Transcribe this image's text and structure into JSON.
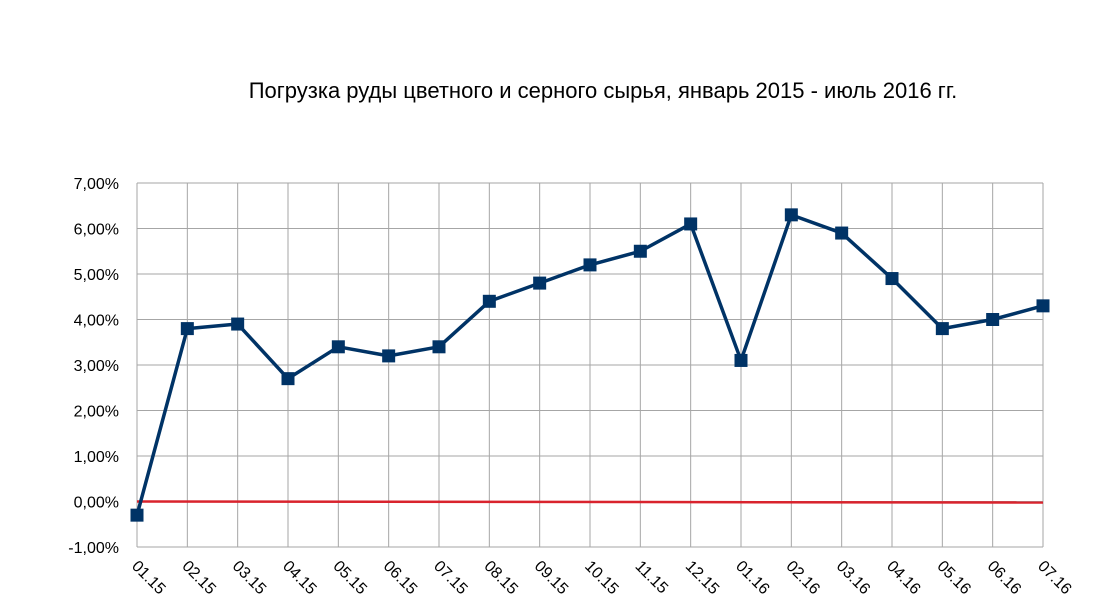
{
  "chart_data": {
    "type": "line",
    "title": "Погрузка руды цветного  и серного  сырья, январь 2015 - июль 2016 гг.",
    "xlabel": "",
    "ylabel": "",
    "categories": [
      "01.15",
      "02.15",
      "03.15",
      "04.15",
      "05.15",
      "06.15",
      "07.15",
      "08.15",
      "09.15",
      "10.15",
      "11.15",
      "12.15",
      "01.16",
      "02.16",
      "03.16",
      "04.16",
      "05.16",
      "06.16",
      "07.16"
    ],
    "series": [
      {
        "values": [
          -0.3,
          3.8,
          3.9,
          2.7,
          3.4,
          3.2,
          3.4,
          4.4,
          4.8,
          5.2,
          5.5,
          6.1,
          3.1,
          6.3,
          5.9,
          4.9,
          3.8,
          4.0,
          4.3
        ],
        "color": "#003366",
        "marker": "square"
      }
    ],
    "reference_line": {
      "value": 0,
      "color": "#d9232d"
    },
    "ylim": [
      -1,
      7
    ],
    "y_ticks": [
      "-1,00%",
      "0,00%",
      "1,00%",
      "2,00%",
      "3,00%",
      "4,00%",
      "5,00%",
      "6,00%",
      "7,00%"
    ],
    "y_tick_values": [
      -1,
      0,
      1,
      2,
      3,
      4,
      5,
      6,
      7
    ],
    "grid": true,
    "legend": "none"
  }
}
